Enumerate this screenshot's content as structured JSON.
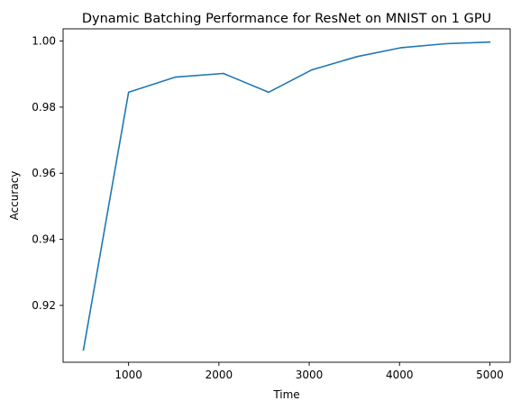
{
  "chart_data": {
    "type": "line",
    "title": "Dynamic Batching Performance for ResNet on MNIST on 1 GPU",
    "xlabel": "Time",
    "ylabel": "Accuracy",
    "xlim": [
      275,
      5225
    ],
    "ylim": [
      0.9028,
      1.0037
    ],
    "xticks": [
      1000,
      2000,
      3000,
      4000,
      5000
    ],
    "xtick_labels": [
      "1000",
      "2000",
      "3000",
      "4000",
      "5000"
    ],
    "yticks": [
      0.92,
      0.94,
      0.96,
      0.98,
      1.0
    ],
    "ytick_labels": [
      "0.92",
      "0.94",
      "0.96",
      "0.98",
      "1.00"
    ],
    "grid": false,
    "legend": "none",
    "series": [
      {
        "color": "#1f77b4",
        "x": [
          500,
          1000,
          1520,
          2050,
          2550,
          3030,
          3530,
          4020,
          4510,
          5000
        ],
        "y": [
          0.9065,
          0.9845,
          0.9891,
          0.9902,
          0.9845,
          0.9913,
          0.9953,
          0.998,
          0.9992,
          0.9997
        ]
      }
    ]
  }
}
